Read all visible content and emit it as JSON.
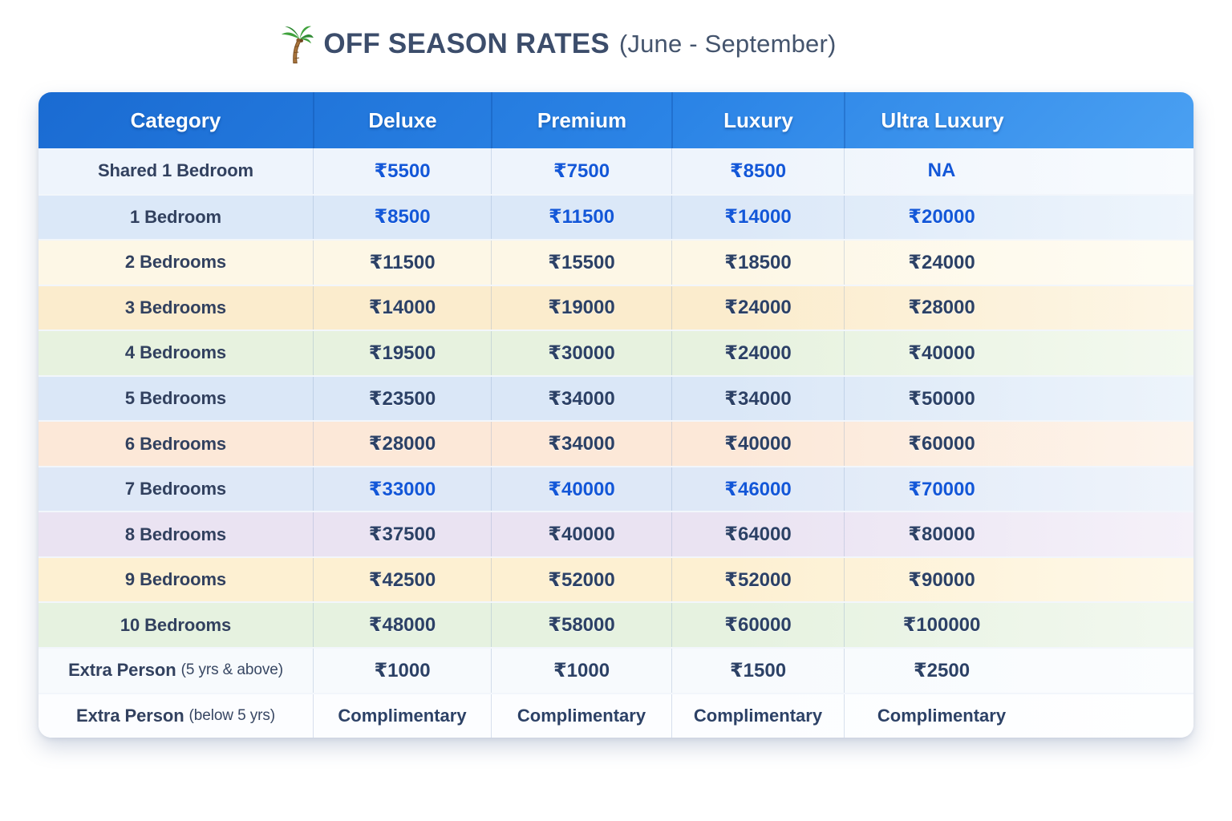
{
  "title": {
    "icon": "palm-tree",
    "text": "OFF SEASON RATES",
    "subtitle": "(June - September)"
  },
  "colors": {
    "header_gradient_start": "#1a6bd2",
    "header_gradient_end": "#4aa0f2",
    "value_blue": "#1357d8",
    "value_navy": "#2c4166",
    "category_text": "#32415f",
    "title_text": "#3c4d6b"
  },
  "table": {
    "headers": [
      "Category",
      "Deluxe",
      "Premium",
      "Luxury",
      "Ultra Luxury"
    ],
    "rows": [
      {
        "category": "Shared 1 Bedroom",
        "note": "",
        "values": [
          "₹5500",
          "₹7500",
          "₹8500",
          "NA"
        ],
        "bg": "#eef4fc",
        "bg_fade": "#f8fbfe",
        "value_style": "blue"
      },
      {
        "category": "1 Bedroom",
        "note": "",
        "values": [
          "₹8500",
          "₹11500",
          "₹14000",
          "₹20000"
        ],
        "bg": "#dbe8f8",
        "bg_fade": "#eef5fc",
        "value_style": "blue"
      },
      {
        "category": "2 Bedrooms",
        "note": "",
        "values": [
          "₹11500",
          "₹15500",
          "₹18500",
          "₹24000"
        ],
        "bg": "#fdf7e6",
        "bg_fade": "#fefcf3",
        "value_style": "navy"
      },
      {
        "category": "3 Bedrooms",
        "note": "",
        "values": [
          "₹14000",
          "₹19000",
          "₹24000",
          "₹28000"
        ],
        "bg": "#fbeccd",
        "bg_fade": "#fdf6e6",
        "value_style": "navy"
      },
      {
        "category": "4 Bedrooms",
        "note": "",
        "values": [
          "₹19500",
          "₹30000",
          "₹24000",
          "₹40000"
        ],
        "bg": "#e7f2df",
        "bg_fade": "#f3f9ef",
        "value_style": "navy"
      },
      {
        "category": "5 Bedrooms",
        "note": "",
        "values": [
          "₹23500",
          "₹34000",
          "₹34000",
          "₹50000"
        ],
        "bg": "#dae7f7",
        "bg_fade": "#edf4fb",
        "value_style": "navy"
      },
      {
        "category": "6 Bedrooms",
        "note": "",
        "values": [
          "₹28000",
          "₹34000",
          "₹40000",
          "₹60000"
        ],
        "bg": "#fce8d8",
        "bg_fade": "#fdf4eb",
        "value_style": "navy"
      },
      {
        "category": "7 Bedrooms",
        "note": "",
        "values": [
          "₹33000",
          "₹40000",
          "₹46000",
          "₹70000"
        ],
        "bg": "#dee8f7",
        "bg_fade": "#eff4fb",
        "value_style": "blue"
      },
      {
        "category": "8 Bedrooms",
        "note": "",
        "values": [
          "₹37500",
          "₹40000",
          "₹64000",
          "₹80000"
        ],
        "bg": "#eae3f2",
        "bg_fade": "#f5f1f9",
        "value_style": "navy"
      },
      {
        "category": "9 Bedrooms",
        "note": "",
        "values": [
          "₹42500",
          "₹52000",
          "₹52000",
          "₹90000"
        ],
        "bg": "#fdf0d2",
        "bg_fade": "#fef8e8",
        "value_style": "navy"
      },
      {
        "category": "10 Bedrooms",
        "note": "",
        "values": [
          "₹48000",
          "₹58000",
          "₹60000",
          "₹100000"
        ],
        "bg": "#e6f2e0",
        "bg_fade": "#f2f8ef",
        "value_style": "navy"
      },
      {
        "category": "Extra Person",
        "note": "(5 yrs & above)",
        "values": [
          "₹1000",
          "₹1000",
          "₹1500",
          "₹2500"
        ],
        "bg": "#f7fafd",
        "bg_fade": "#fbfdfe",
        "value_style": "navy"
      },
      {
        "category": "Extra Person",
        "note": "(below 5 yrs)",
        "values": [
          "Complimentary",
          "Complimentary",
          "Complimentary",
          "Complimentary"
        ],
        "bg": "#fcfdff",
        "bg_fade": "#feffff",
        "value_style": "navy"
      }
    ]
  }
}
